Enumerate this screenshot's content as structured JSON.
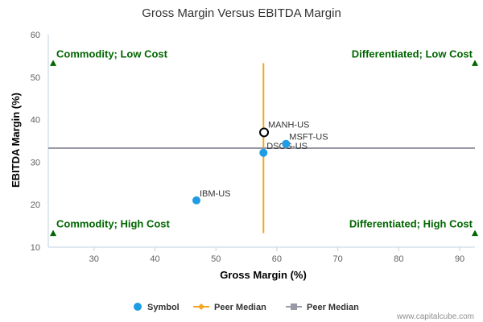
{
  "chart_data": {
    "type": "scatter",
    "title": "Gross Margin Versus EBITDA Margin",
    "xlabel": "Gross Margin (%)",
    "ylabel": "EBITDA Margin (%)",
    "xlim": [
      22.5,
      92.5
    ],
    "ylim": [
      10,
      60
    ],
    "xticks": [
      30,
      40,
      50,
      60,
      70,
      80,
      90
    ],
    "yticks": [
      10,
      20,
      30,
      40,
      50,
      60
    ],
    "grid": false,
    "legend_position": "bottom",
    "series": [
      {
        "name": "Symbol",
        "color": "#1f9ce4",
        "points": [
          {
            "label": "IBM-US",
            "x": 46.8,
            "y": 21.0
          },
          {
            "label": "DSCG-US",
            "x": 57.8,
            "y": 32.2
          },
          {
            "label": "MSFT-US",
            "x": 61.5,
            "y": 34.3
          }
        ]
      },
      {
        "name": "Peer Median",
        "color": "#f5a623",
        "x": 57.8,
        "y_range": [
          13.3,
          53.3
        ]
      },
      {
        "name": "Peer Median",
        "color": "#999aa8",
        "y": 33.3,
        "x_range": [
          22.5,
          92.5
        ]
      }
    ],
    "highlight": {
      "label": "MANH-US",
      "x": 57.9,
      "y": 37.0
    },
    "quadrants": [
      {
        "label": "Commodity; Low Cost",
        "marker_x": 23.3,
        "marker_y": 53.3,
        "position": "top-left"
      },
      {
        "label": "Differentiated; Low Cost",
        "marker_x": 92.5,
        "marker_y": 53.3,
        "position": "top-right"
      },
      {
        "label": "Commodity; High Cost",
        "marker_x": 23.3,
        "marker_y": 13.3,
        "position": "bottom-left"
      },
      {
        "label": "Differentiated; High Cost",
        "marker_x": 92.5,
        "marker_y": 13.3,
        "position": "bottom-right"
      }
    ],
    "quadrant_color": "#006600",
    "axis_color": "#c0d0e0",
    "credit": "www.capitalcube.com"
  }
}
